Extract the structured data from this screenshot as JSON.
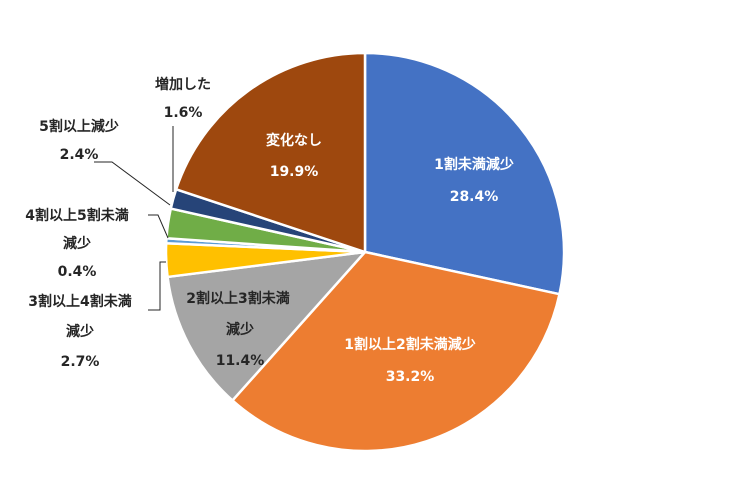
{
  "chart_data": {
    "type": "pie",
    "title": "",
    "slices": [
      {
        "label": "1割未満減少",
        "value": 28.4,
        "display": "28.4%",
        "color": "#4472C4"
      },
      {
        "label": "1割以上2割未満減少",
        "value": 33.2,
        "display": "33.2%",
        "color": "#ED7D31"
      },
      {
        "label": "2割以上3割未満減少",
        "value": 11.4,
        "display": "11.4%",
        "color": "#A5A5A5"
      },
      {
        "label": "3割以上4割未満減少",
        "value": 2.7,
        "display": "2.7%",
        "color": "#FFC000"
      },
      {
        "label": "4割以上5割未満減少",
        "value": 0.4,
        "display": "0.4%",
        "color": "#5B9BD5"
      },
      {
        "label": "5割以上減少",
        "value": 2.4,
        "display": "2.4%",
        "color": "#70AD47"
      },
      {
        "label": "増加した",
        "value": 1.6,
        "display": "1.6%",
        "color": "#264478"
      },
      {
        "label": "変化なし",
        "value": 19.9,
        "display": "19.9%",
        "color": "#9E480E"
      }
    ]
  }
}
